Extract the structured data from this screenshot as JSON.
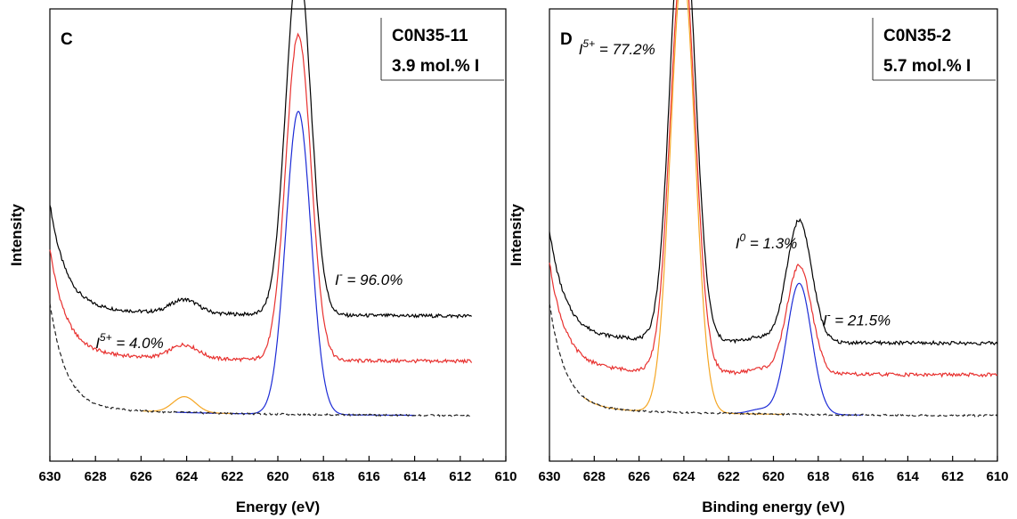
{
  "chart_data": [
    {
      "type": "line",
      "panel": "C",
      "sample_name": "C0N35-11",
      "sample_content": "3.9 mol.% I",
      "xlabel": "Energy (eV)",
      "ylabel": "Intensity",
      "xlim": [
        630,
        610
      ],
      "x_reversed": true,
      "xticks": [
        "630",
        "628",
        "626",
        "624",
        "622",
        "620",
        "618",
        "616",
        "614",
        "612",
        "610"
      ],
      "grid": false,
      "annotations": [
        {
          "text": "I",
          "sup": "5+",
          "rest": " = 4.0%",
          "x": 628,
          "y": 0.25
        },
        {
          "text": "I",
          "sup": "-",
          "rest": " = 96.0%",
          "x": 617.5,
          "y": 0.39
        }
      ],
      "series": [
        {
          "color": "#000000",
          "peaks": [
            {
              "center": 624.1,
              "height": 0.03,
              "width": 0.6
            },
            {
              "center": 619.1,
              "height": 0.78,
              "width": 0.55
            }
          ],
          "baseline_offset": 0.22
        },
        {
          "color": "#e8312f",
          "peaks": [
            {
              "center": 624.1,
              "height": 0.03,
              "width": 0.6
            },
            {
              "center": 619.1,
              "height": 0.72,
              "width": 0.55
            }
          ],
          "baseline_offset": 0.12
        },
        {
          "color": "#1c2bd6",
          "peaks": [
            {
              "center": 619.1,
              "height": 0.67,
              "width": 0.55
            }
          ],
          "baseline_offset": 0.0,
          "range": [
            624.5,
            614
          ]
        },
        {
          "color": "#f5a623",
          "peaks": [
            {
              "center": 624.1,
              "height": 0.035,
              "width": 0.5
            }
          ],
          "baseline_offset": 0.0,
          "range": [
            626,
            622
          ]
        },
        {
          "color": "#222222",
          "dashed": true,
          "peaks": [],
          "baseline_offset": 0.0
        }
      ]
    },
    {
      "type": "line",
      "panel": "D",
      "sample_name": "C0N35-2",
      "sample_content": "5.7 mol.% I",
      "xlabel": "Binding energy (eV)",
      "ylabel": "Intensity",
      "xlim": [
        630,
        610
      ],
      "x_reversed": true,
      "xticks": [
        "630",
        "628",
        "626",
        "624",
        "622",
        "620",
        "618",
        "616",
        "614",
        "612",
        "610"
      ],
      "grid": false,
      "annotations": [
        {
          "text": "I",
          "sup": "5+",
          "rest": " = 77.2%",
          "x": 628.7,
          "y": 0.9
        },
        {
          "text": "I",
          "sup": "0",
          "rest": " = 1.3%",
          "x": 621.7,
          "y": 0.47
        },
        {
          "text": "I",
          "sup": "-",
          "rest": " = 21.5%",
          "x": 617.8,
          "y": 0.3
        }
      ],
      "series": [
        {
          "color": "#000000",
          "peaks": [
            {
              "center": 624.05,
              "height": 0.98,
              "width": 0.55
            },
            {
              "center": 620.6,
              "height": 0.01,
              "width": 0.5
            },
            {
              "center": 618.85,
              "height": 0.27,
              "width": 0.55
            }
          ],
          "baseline_offset": 0.16
        },
        {
          "color": "#e8312f",
          "peaks": [
            {
              "center": 624.05,
              "height": 0.93,
              "width": 0.55
            },
            {
              "center": 620.6,
              "height": 0.01,
              "width": 0.5
            },
            {
              "center": 618.85,
              "height": 0.24,
              "width": 0.55
            }
          ],
          "baseline_offset": 0.09
        },
        {
          "color": "#1c2bd6",
          "peaks": [
            {
              "center": 620.6,
              "height": 0.01,
              "width": 0.5
            },
            {
              "center": 618.85,
              "height": 0.29,
              "width": 0.55
            }
          ],
          "baseline_offset": 0.0,
          "range": [
            622,
            616
          ]
        },
        {
          "color": "#f5a623",
          "peaks": [
            {
              "center": 624.05,
              "height": 0.98,
              "width": 0.55
            }
          ],
          "baseline_offset": 0.0,
          "range": [
            628.5,
            619.5
          ]
        },
        {
          "color": "#222222",
          "dashed": true,
          "peaks": [],
          "baseline_offset": 0.0
        }
      ]
    }
  ]
}
